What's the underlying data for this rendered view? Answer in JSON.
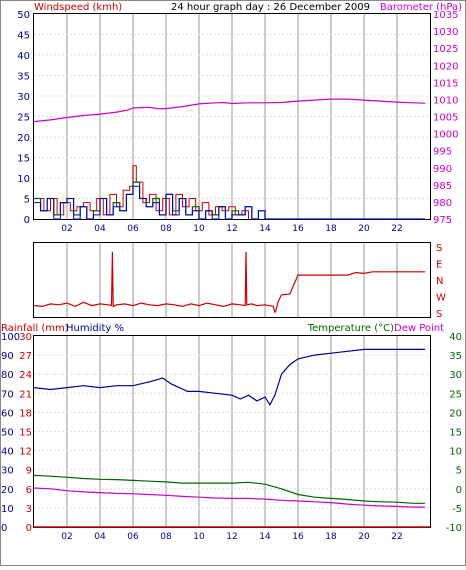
{
  "colors": {
    "wind_label": "#cc0000",
    "baro": "#cc00cc",
    "wind_gust": "#cc0000",
    "wind_avg1": "#006600",
    "wind_avg2": "#0000cc",
    "wind_dark": "#444400",
    "direction": "#cc0000",
    "rain": "#cc0000",
    "humidity": "#000099",
    "temperature": "#006600",
    "dewpoint": "#cc00cc",
    "grid": "#cccccc",
    "axis_blue": "#000099",
    "axis_black": "#000000"
  },
  "x_ticks": [
    "02",
    "04",
    "06",
    "08",
    "10",
    "12",
    "14",
    "16",
    "18",
    "20",
    "22"
  ],
  "chart_data": [
    {
      "type": "line",
      "title": "24 hour graph day : 26 December 2009",
      "left_label": "Windspeed (kmh)",
      "right_label": "Barometer (hPa)",
      "x_range_hours": [
        0,
        24
      ],
      "y_left": {
        "min": 0,
        "max": 50,
        "ticks": [
          "0",
          "5",
          "10",
          "15",
          "20",
          "25",
          "30",
          "35",
          "40",
          "45",
          "50"
        ]
      },
      "y_right": {
        "min": 975,
        "max": 1035,
        "ticks": [
          "975",
          "980",
          "985",
          "990",
          "995",
          "1000",
          "1005",
          "1010",
          "1015",
          "1020",
          "1025",
          "1030",
          "1035"
        ]
      },
      "series": [
        {
          "key": "barometer",
          "x": [
            0,
            1,
            2,
            3,
            4,
            5,
            5.7,
            6,
            7,
            7.5,
            8,
            9,
            10,
            11,
            11.5,
            12,
            13,
            14,
            15,
            16,
            17,
            18,
            19,
            20,
            21,
            22,
            23,
            23.7
          ],
          "values": [
            1003.5,
            1004,
            1004.7,
            1005.3,
            1005.7,
            1006.3,
            1006.9,
            1007.5,
            1007.7,
            1007.3,
            1007.3,
            1007.9,
            1008.7,
            1009,
            1009.1,
            1008.8,
            1009,
            1009,
            1009.1,
            1009.5,
            1009.8,
            1010.1,
            1010.1,
            1009.8,
            1009.5,
            1009.2,
            1009,
            1008.9
          ]
        },
        {
          "key": "wind_gust",
          "x": [
            0.2,
            0.6,
            1.0,
            1.4,
            1.8,
            2.2,
            2.6,
            3.0,
            3.4,
            3.8,
            4.2,
            4.6,
            5.0,
            5.4,
            5.8,
            6.0,
            6.2,
            6.6,
            7.0,
            7.4,
            7.8,
            8.2,
            8.6,
            9.0,
            9.4,
            9.8,
            10.2,
            10.6,
            11.0,
            11.4,
            11.8,
            12.2,
            12.6,
            13.0
          ],
          "values": [
            5,
            2,
            5,
            1,
            4,
            2,
            3,
            4,
            2,
            5,
            1,
            6,
            3,
            7,
            8,
            13,
            9,
            4,
            6,
            2,
            5,
            1,
            6,
            3,
            5,
            2,
            4,
            1,
            3,
            2,
            3,
            1,
            2,
            0
          ]
        },
        {
          "key": "wind_avg",
          "x": [
            0,
            0.4,
            0.8,
            1.2,
            1.6,
            2.0,
            2.4,
            2.8,
            3.2,
            3.6,
            4.0,
            4.4,
            4.8,
            5.2,
            5.6,
            6.0,
            6.4,
            6.8,
            7.2,
            7.6,
            8.0,
            8.4,
            8.8,
            9.2,
            9.6,
            10.0,
            10.4,
            10.8,
            11.2,
            11.6,
            12.0,
            12.4,
            12.8,
            13.2,
            13.6,
            14,
            16,
            18,
            20,
            22,
            23.7
          ],
          "values": [
            5,
            2,
            5,
            1,
            4,
            5,
            1,
            3,
            0,
            2,
            5,
            1,
            4,
            2,
            6,
            9,
            5,
            3,
            5,
            1,
            6,
            2,
            5,
            1,
            3,
            0,
            2,
            1,
            3,
            0,
            2,
            1,
            3,
            0,
            2,
            0,
            0,
            0,
            0,
            0,
            0
          ]
        }
      ]
    },
    {
      "type": "line",
      "title": "",
      "right_labels": [
        "S",
        "E",
        "N",
        "W",
        "S"
      ],
      "x_range_hours": [
        0,
        24
      ],
      "series": [
        {
          "key": "wind_direction",
          "note_scale": "0=S,1=E,2=N,3=W,4=S (reversed display)",
          "x": [
            0,
            0.5,
            1,
            1.5,
            2,
            2.5,
            3,
            3.5,
            4,
            4.5,
            4.7,
            4.75,
            4.8,
            5,
            5.5,
            6,
            6.5,
            7,
            7.5,
            8,
            8.5,
            9,
            9.5,
            10,
            10.5,
            11,
            11.5,
            12,
            12.5,
            12.8,
            12.85,
            12.9,
            13.2,
            13.5,
            14,
            14.5,
            14.6,
            14.65,
            14.8,
            15,
            15.5,
            16,
            17,
            18,
            19,
            19.5,
            20,
            20.5,
            21,
            22,
            23,
            23.7
          ],
          "values": [
            3.55,
            3.6,
            3.45,
            3.5,
            3.4,
            3.6,
            3.35,
            3.55,
            3.45,
            3.5,
            3.55,
            0.3,
            3.6,
            3.5,
            3.45,
            3.55,
            3.4,
            3.5,
            3.55,
            3.45,
            3.5,
            3.6,
            3.45,
            3.55,
            3.4,
            3.5,
            3.6,
            3.45,
            3.5,
            3.55,
            0.3,
            3.5,
            3.45,
            3.55,
            3.5,
            3.6,
            3.95,
            3.9,
            3.3,
            2.9,
            2.85,
            1.7,
            1.7,
            1.7,
            1.7,
            1.55,
            1.6,
            1.5,
            1.5,
            1.5,
            1.5,
            1.5
          ]
        }
      ]
    },
    {
      "type": "line",
      "title": "",
      "left_label_rain": "Rainfall (mm)",
      "left_label_hum": "Humidity %",
      "right_label_temp": "Temperature (°C)",
      "right_label_dew": "Dew Point",
      "x_range_hours": [
        0,
        24
      ],
      "y_humidity": {
        "min": 0,
        "max": 100,
        "ticks": [
          "0",
          "10",
          "20",
          "30",
          "40",
          "50",
          "60",
          "70",
          "80",
          "90",
          "100"
        ]
      },
      "y_rain": {
        "min": 0,
        "max": 30,
        "ticks": [
          "0",
          "3",
          "6",
          "9",
          "12",
          "15",
          "18",
          "21",
          "24",
          "27",
          "30"
        ]
      },
      "y_temp": {
        "min": -10,
        "max": 40,
        "ticks": [
          "-10",
          "-5",
          "0",
          "5",
          "10",
          "15",
          "20",
          "25",
          "30",
          "35",
          "40"
        ]
      },
      "series": [
        {
          "key": "humidity",
          "x": [
            0,
            1,
            2,
            3,
            4,
            5,
            6,
            7,
            7.8,
            8.3,
            8.8,
            9.3,
            10,
            11,
            12,
            12.5,
            13,
            13.5,
            14,
            14.3,
            14.6,
            15,
            15.5,
            16,
            17,
            18,
            19,
            20,
            21,
            22,
            23,
            23.7
          ],
          "values": [
            73,
            72,
            73,
            74,
            73,
            74,
            74,
            76,
            78,
            75,
            73,
            71,
            71,
            70,
            69,
            67,
            69,
            66,
            68,
            64,
            69,
            80,
            85,
            88,
            90,
            91,
            92,
            93,
            93,
            93,
            93,
            93
          ]
        },
        {
          "key": "rainfall",
          "x": [
            0,
            24
          ],
          "values": [
            0,
            0
          ]
        },
        {
          "key": "temperature",
          "x": [
            0,
            1,
            2,
            3,
            4,
            5,
            6,
            7,
            8,
            9,
            10,
            11,
            12,
            13,
            14,
            15,
            16,
            17,
            18,
            19,
            20,
            21,
            22,
            23,
            23.7
          ],
          "values": [
            3.5,
            3.3,
            3,
            2.7,
            2.5,
            2.4,
            2.2,
            2,
            1.8,
            1.5,
            1.5,
            1.5,
            1.5,
            1.7,
            1.2,
            0,
            -1.5,
            -2.2,
            -2.5,
            -2.8,
            -3.2,
            -3.4,
            -3.5,
            -3.8,
            -3.8
          ]
        },
        {
          "key": "dewpoint",
          "x": [
            0,
            1,
            2,
            3,
            4,
            5,
            6,
            7,
            8,
            9,
            10,
            11,
            12,
            13,
            14,
            15,
            16,
            17,
            18,
            19,
            20,
            21,
            22,
            23,
            23.7
          ],
          "values": [
            0.2,
            0,
            -0.5,
            -0.8,
            -1,
            -1.2,
            -1.3,
            -1.5,
            -1.7,
            -2,
            -2.2,
            -2.4,
            -2.5,
            -2.5,
            -2.7,
            -3,
            -3.2,
            -3.4,
            -3.6,
            -4,
            -4.3,
            -4.5,
            -4.6,
            -4.8,
            -4.8
          ]
        }
      ]
    }
  ]
}
